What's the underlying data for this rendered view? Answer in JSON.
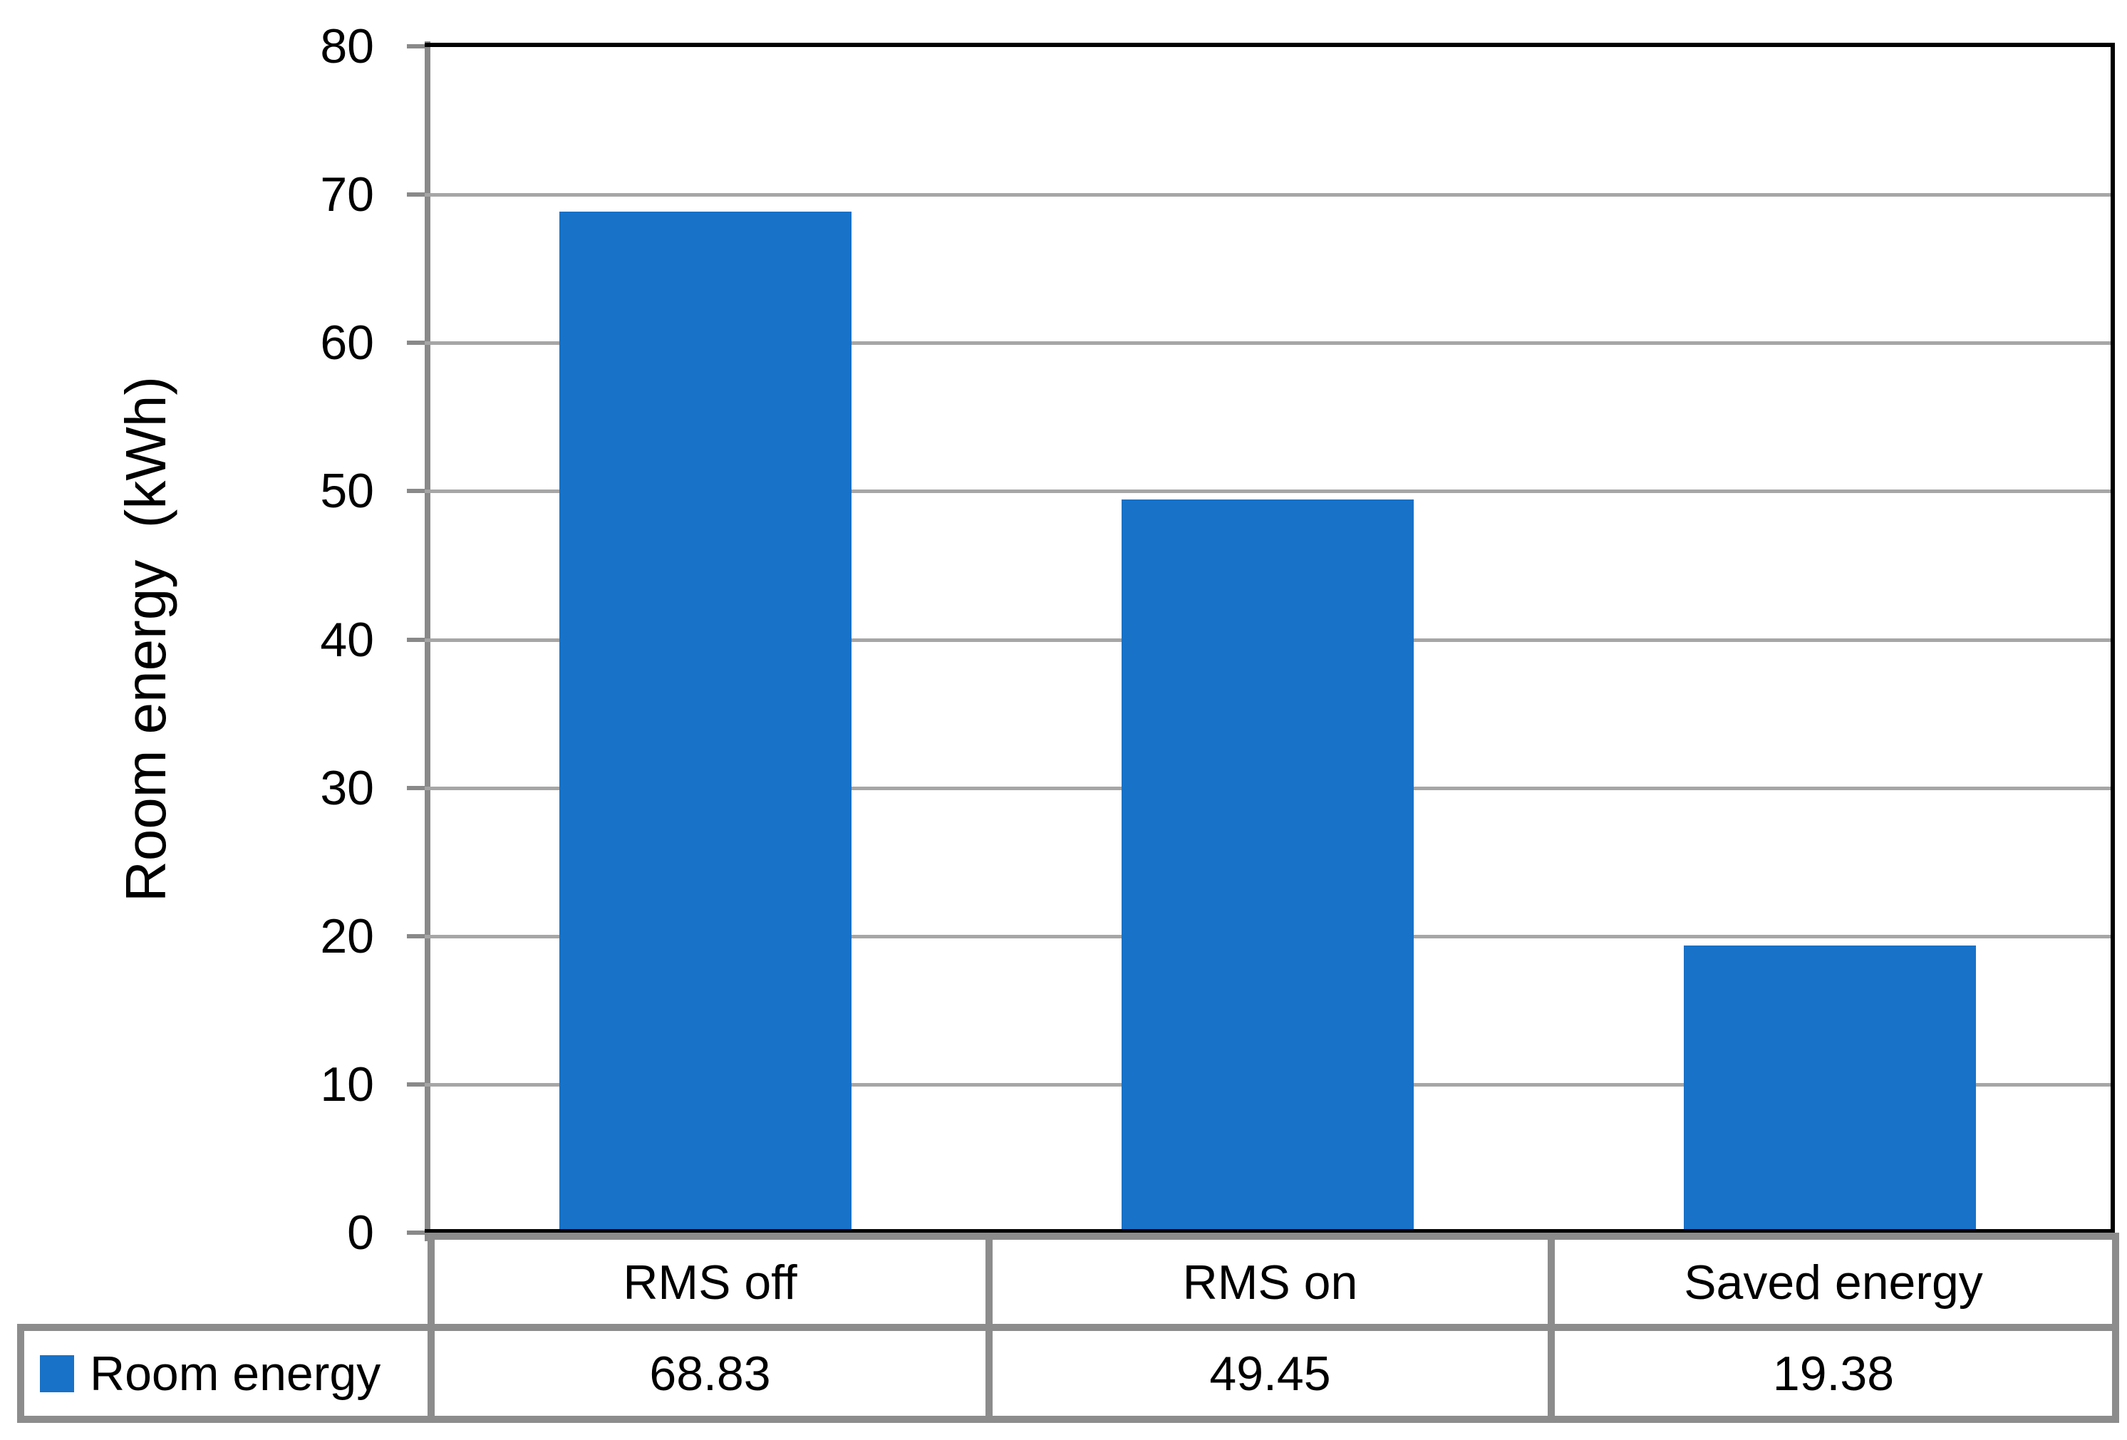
{
  "chart_data": {
    "type": "bar",
    "title": "",
    "categories": [
      "RMS off",
      "RMS on",
      "Saved energy"
    ],
    "series": [
      {
        "name": "Room energy",
        "values": [
          68.83,
          49.45,
          19.38
        ]
      }
    ],
    "values_display": [
      "68.83",
      "49.45",
      "19.38"
    ],
    "xlabel": "",
    "ylabel": "Room energy  (kWh)",
    "ylim": [
      0,
      80
    ],
    "ytick_step": 10,
    "ytick_labels": [
      "0",
      "10",
      "20",
      "30",
      "40",
      "50",
      "60",
      "70",
      "80"
    ],
    "grid": true,
    "legend_position": "data-table-left",
    "data_table_shown": true,
    "colors": {
      "bar": "#1772C8",
      "gridline": "#A6A6A6",
      "axis_line": "#898989",
      "table_border": "#8C8C8C",
      "plot_border": "#000000",
      "text": "#000000",
      "background": "#FFFFFF"
    }
  }
}
